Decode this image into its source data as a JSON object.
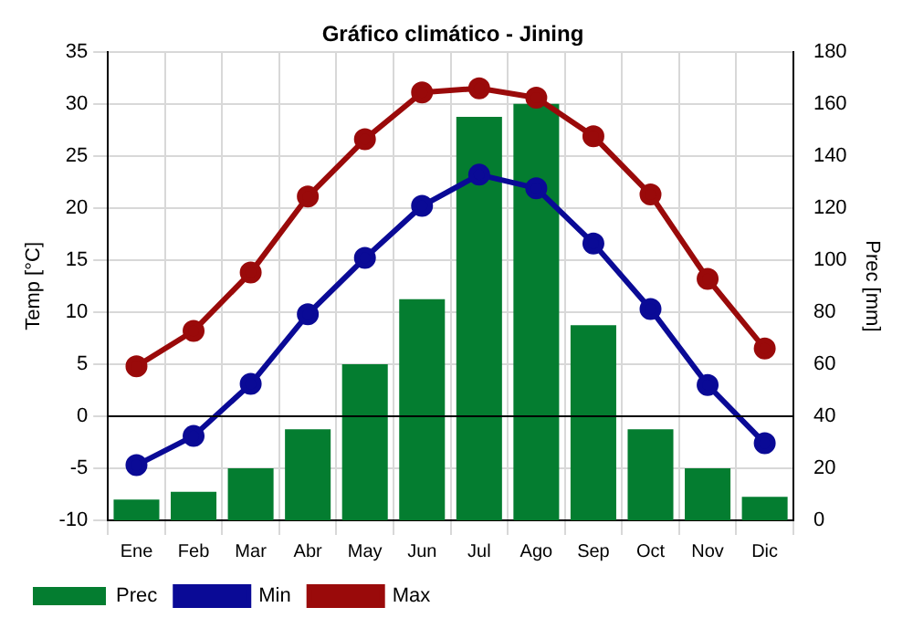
{
  "chart_data": {
    "type": "bar",
    "title": "Gráfico climático - Jining",
    "ylabel": "Temp [°C]",
    "y2label": "Prec [mm]",
    "categories": [
      "Ene",
      "Feb",
      "Mar",
      "Abr",
      "May",
      "Jun",
      "Jul",
      "Ago",
      "Sep",
      "Oct",
      "Nov",
      "Dic"
    ],
    "series": [
      {
        "name": "Prec",
        "axis": "y2",
        "color": "#047d30",
        "values": [
          8,
          11,
          20,
          35,
          60,
          85,
          155,
          160,
          75,
          35,
          20,
          9
        ]
      },
      {
        "name": "Min",
        "type": "line",
        "axis": "y",
        "color": "#0a0a96",
        "values": [
          -4.7,
          -1.9,
          3.1,
          9.8,
          15.2,
          20.2,
          23.2,
          21.9,
          16.6,
          10.3,
          3.0,
          -2.6
        ]
      },
      {
        "name": "Max",
        "type": "line",
        "axis": "y",
        "color": "#9a0a0a",
        "values": [
          4.8,
          8.2,
          13.8,
          21.1,
          26.6,
          31.1,
          31.5,
          30.6,
          26.9,
          21.3,
          13.2,
          6.5
        ]
      }
    ],
    "ylim": [
      -10,
      35
    ],
    "yticks": [
      -10,
      -5,
      0,
      5,
      10,
      15,
      20,
      25,
      30,
      35
    ],
    "y2lim": [
      0,
      180
    ],
    "y2ticks": [
      0,
      20,
      40,
      60,
      80,
      100,
      120,
      140,
      160,
      180
    ],
    "ref_lines": [
      {
        "axis": "y",
        "value": 0,
        "color": "#000000"
      }
    ],
    "grid": true,
    "legend": "bottom left",
    "marker": "circle",
    "line_style": "solid"
  }
}
